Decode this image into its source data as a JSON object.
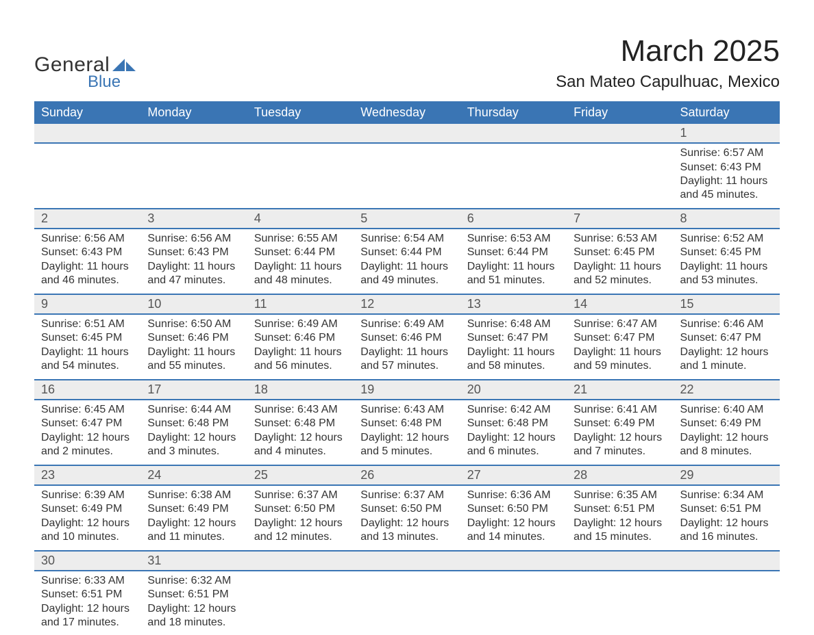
{
  "logo": {
    "text_general": "General",
    "text_blue": "Blue",
    "shape_color": "#3a75b4"
  },
  "header": {
    "month_title": "March 2025",
    "location": "San Mateo Capulhuac, Mexico"
  },
  "colors": {
    "header_bg": "#3a75b4",
    "header_text": "#ffffff",
    "daynum_bg": "#ededed",
    "row_divider": "#3a75b4",
    "body_text": "#333333",
    "page_bg": "#ffffff"
  },
  "typography": {
    "month_title_fontsize": 44,
    "location_fontsize": 24,
    "weekday_fontsize": 18,
    "daynum_fontsize": 18,
    "cell_fontsize": 16
  },
  "weekdays": [
    "Sunday",
    "Monday",
    "Tuesday",
    "Wednesday",
    "Thursday",
    "Friday",
    "Saturday"
  ],
  "weeks": [
    [
      null,
      null,
      null,
      null,
      null,
      null,
      {
        "day": "1",
        "sunrise": "Sunrise: 6:57 AM",
        "sunset": "Sunset: 6:43 PM",
        "daylight1": "Daylight: 11 hours",
        "daylight2": "and 45 minutes."
      }
    ],
    [
      {
        "day": "2",
        "sunrise": "Sunrise: 6:56 AM",
        "sunset": "Sunset: 6:43 PM",
        "daylight1": "Daylight: 11 hours",
        "daylight2": "and 46 minutes."
      },
      {
        "day": "3",
        "sunrise": "Sunrise: 6:56 AM",
        "sunset": "Sunset: 6:43 PM",
        "daylight1": "Daylight: 11 hours",
        "daylight2": "and 47 minutes."
      },
      {
        "day": "4",
        "sunrise": "Sunrise: 6:55 AM",
        "sunset": "Sunset: 6:44 PM",
        "daylight1": "Daylight: 11 hours",
        "daylight2": "and 48 minutes."
      },
      {
        "day": "5",
        "sunrise": "Sunrise: 6:54 AM",
        "sunset": "Sunset: 6:44 PM",
        "daylight1": "Daylight: 11 hours",
        "daylight2": "and 49 minutes."
      },
      {
        "day": "6",
        "sunrise": "Sunrise: 6:53 AM",
        "sunset": "Sunset: 6:44 PM",
        "daylight1": "Daylight: 11 hours",
        "daylight2": "and 51 minutes."
      },
      {
        "day": "7",
        "sunrise": "Sunrise: 6:53 AM",
        "sunset": "Sunset: 6:45 PM",
        "daylight1": "Daylight: 11 hours",
        "daylight2": "and 52 minutes."
      },
      {
        "day": "8",
        "sunrise": "Sunrise: 6:52 AM",
        "sunset": "Sunset: 6:45 PM",
        "daylight1": "Daylight: 11 hours",
        "daylight2": "and 53 minutes."
      }
    ],
    [
      {
        "day": "9",
        "sunrise": "Sunrise: 6:51 AM",
        "sunset": "Sunset: 6:45 PM",
        "daylight1": "Daylight: 11 hours",
        "daylight2": "and 54 minutes."
      },
      {
        "day": "10",
        "sunrise": "Sunrise: 6:50 AM",
        "sunset": "Sunset: 6:46 PM",
        "daylight1": "Daylight: 11 hours",
        "daylight2": "and 55 minutes."
      },
      {
        "day": "11",
        "sunrise": "Sunrise: 6:49 AM",
        "sunset": "Sunset: 6:46 PM",
        "daylight1": "Daylight: 11 hours",
        "daylight2": "and 56 minutes."
      },
      {
        "day": "12",
        "sunrise": "Sunrise: 6:49 AM",
        "sunset": "Sunset: 6:46 PM",
        "daylight1": "Daylight: 11 hours",
        "daylight2": "and 57 minutes."
      },
      {
        "day": "13",
        "sunrise": "Sunrise: 6:48 AM",
        "sunset": "Sunset: 6:47 PM",
        "daylight1": "Daylight: 11 hours",
        "daylight2": "and 58 minutes."
      },
      {
        "day": "14",
        "sunrise": "Sunrise: 6:47 AM",
        "sunset": "Sunset: 6:47 PM",
        "daylight1": "Daylight: 11 hours",
        "daylight2": "and 59 minutes."
      },
      {
        "day": "15",
        "sunrise": "Sunrise: 6:46 AM",
        "sunset": "Sunset: 6:47 PM",
        "daylight1": "Daylight: 12 hours",
        "daylight2": "and 1 minute."
      }
    ],
    [
      {
        "day": "16",
        "sunrise": "Sunrise: 6:45 AM",
        "sunset": "Sunset: 6:47 PM",
        "daylight1": "Daylight: 12 hours",
        "daylight2": "and 2 minutes."
      },
      {
        "day": "17",
        "sunrise": "Sunrise: 6:44 AM",
        "sunset": "Sunset: 6:48 PM",
        "daylight1": "Daylight: 12 hours",
        "daylight2": "and 3 minutes."
      },
      {
        "day": "18",
        "sunrise": "Sunrise: 6:43 AM",
        "sunset": "Sunset: 6:48 PM",
        "daylight1": "Daylight: 12 hours",
        "daylight2": "and 4 minutes."
      },
      {
        "day": "19",
        "sunrise": "Sunrise: 6:43 AM",
        "sunset": "Sunset: 6:48 PM",
        "daylight1": "Daylight: 12 hours",
        "daylight2": "and 5 minutes."
      },
      {
        "day": "20",
        "sunrise": "Sunrise: 6:42 AM",
        "sunset": "Sunset: 6:48 PM",
        "daylight1": "Daylight: 12 hours",
        "daylight2": "and 6 minutes."
      },
      {
        "day": "21",
        "sunrise": "Sunrise: 6:41 AM",
        "sunset": "Sunset: 6:49 PM",
        "daylight1": "Daylight: 12 hours",
        "daylight2": "and 7 minutes."
      },
      {
        "day": "22",
        "sunrise": "Sunrise: 6:40 AM",
        "sunset": "Sunset: 6:49 PM",
        "daylight1": "Daylight: 12 hours",
        "daylight2": "and 8 minutes."
      }
    ],
    [
      {
        "day": "23",
        "sunrise": "Sunrise: 6:39 AM",
        "sunset": "Sunset: 6:49 PM",
        "daylight1": "Daylight: 12 hours",
        "daylight2": "and 10 minutes."
      },
      {
        "day": "24",
        "sunrise": "Sunrise: 6:38 AM",
        "sunset": "Sunset: 6:49 PM",
        "daylight1": "Daylight: 12 hours",
        "daylight2": "and 11 minutes."
      },
      {
        "day": "25",
        "sunrise": "Sunrise: 6:37 AM",
        "sunset": "Sunset: 6:50 PM",
        "daylight1": "Daylight: 12 hours",
        "daylight2": "and 12 minutes."
      },
      {
        "day": "26",
        "sunrise": "Sunrise: 6:37 AM",
        "sunset": "Sunset: 6:50 PM",
        "daylight1": "Daylight: 12 hours",
        "daylight2": "and 13 minutes."
      },
      {
        "day": "27",
        "sunrise": "Sunrise: 6:36 AM",
        "sunset": "Sunset: 6:50 PM",
        "daylight1": "Daylight: 12 hours",
        "daylight2": "and 14 minutes."
      },
      {
        "day": "28",
        "sunrise": "Sunrise: 6:35 AM",
        "sunset": "Sunset: 6:51 PM",
        "daylight1": "Daylight: 12 hours",
        "daylight2": "and 15 minutes."
      },
      {
        "day": "29",
        "sunrise": "Sunrise: 6:34 AM",
        "sunset": "Sunset: 6:51 PM",
        "daylight1": "Daylight: 12 hours",
        "daylight2": "and 16 minutes."
      }
    ],
    [
      {
        "day": "30",
        "sunrise": "Sunrise: 6:33 AM",
        "sunset": "Sunset: 6:51 PM",
        "daylight1": "Daylight: 12 hours",
        "daylight2": "and 17 minutes."
      },
      {
        "day": "31",
        "sunrise": "Sunrise: 6:32 AM",
        "sunset": "Sunset: 6:51 PM",
        "daylight1": "Daylight: 12 hours",
        "daylight2": "and 18 minutes."
      },
      null,
      null,
      null,
      null,
      null
    ]
  ]
}
